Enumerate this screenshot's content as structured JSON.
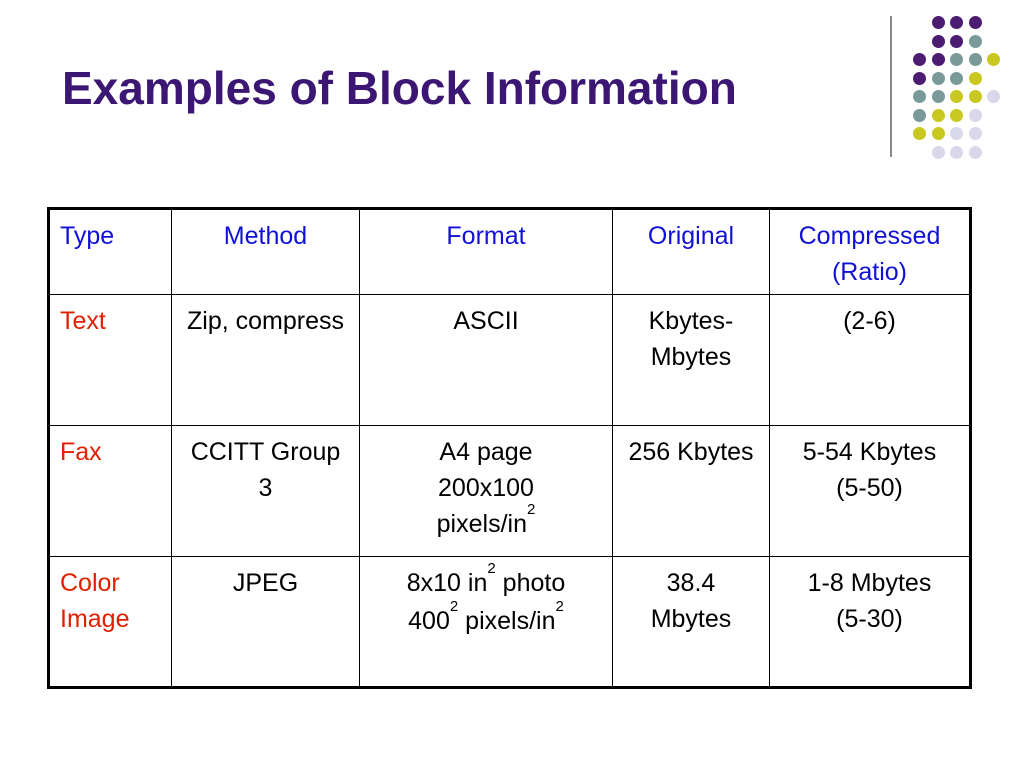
{
  "slide": {
    "title": "Examples of Block Information"
  },
  "colors": {
    "title": "#3b1672",
    "header_text": "#1010d8",
    "row_label_text": "#e02000",
    "dot_purple": "#4b1c72",
    "dot_teal": "#7a9a9a",
    "dot_olive": "#c8c820",
    "dot_lavender": "#d8d8ea"
  },
  "table": {
    "headers": [
      "Type",
      "Method",
      "Format",
      "Original",
      "Compressed (Ratio)"
    ],
    "rows": [
      {
        "type": "Text",
        "method": "Zip, compress",
        "format": "ASCII",
        "original": "Kbytes-Mbytes",
        "compressed": "(2-6)"
      },
      {
        "type": "Fax",
        "method": "CCITT Group 3",
        "format_line1": "A4 page",
        "format_line2": "200x100",
        "format_line3_base": "pixels/in",
        "format_line3_sup": "2",
        "original": "256 Kbytes",
        "compressed_line1": "5-54 Kbytes",
        "compressed_line2": "(5-50)"
      },
      {
        "type": "Color Image",
        "method": "JPEG",
        "format_line1_base": "8x10 in",
        "format_line1_sup": "2",
        "format_line1_rest": " photo",
        "format_line2_base": "400",
        "format_line2_sup": "2",
        "format_line2_mid": " pixels/in",
        "format_line2_sup2": "2",
        "original": "38.4 Mbytes",
        "compressed_line1": "1-8 Mbytes",
        "compressed_line2": "(5-30)"
      }
    ]
  }
}
